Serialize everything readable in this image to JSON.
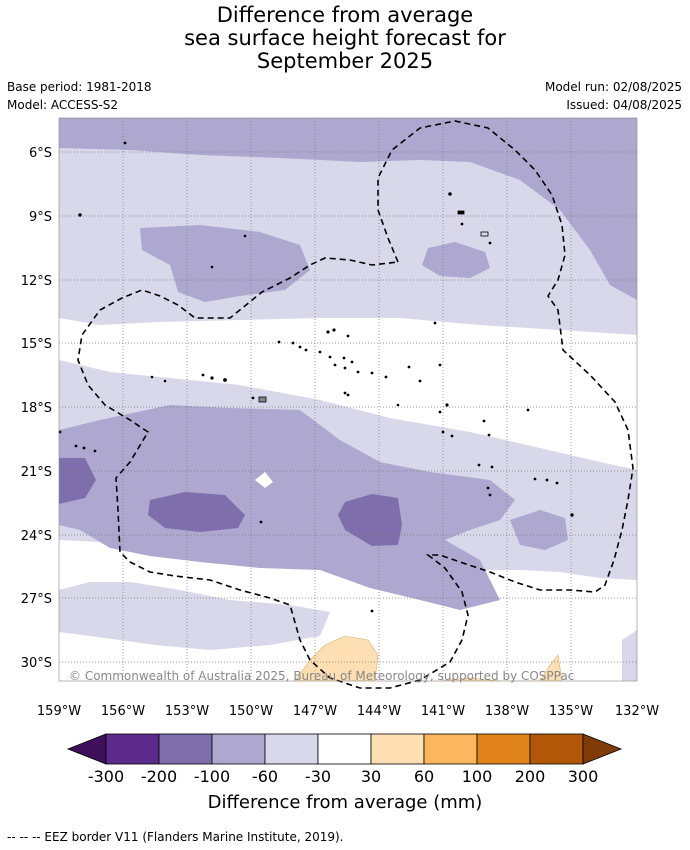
{
  "title": {
    "line1": "Difference from average",
    "line2": "sea surface height forecast for",
    "line3": "September 2025"
  },
  "meta": {
    "base_period": "Base period: 1981-2018",
    "model": "Model: ACCESS-S2",
    "model_run": "Model run: 02/08/2025",
    "issued": "Issued: 04/08/2025"
  },
  "map": {
    "lat_labels": [
      "6°S",
      "9°S",
      "12°S",
      "15°S",
      "18°S",
      "21°S",
      "24°S",
      "27°S",
      "30°S"
    ],
    "lon_labels": [
      "159°W",
      "156°W",
      "153°W",
      "150°W",
      "147°W",
      "144°W",
      "141°W",
      "138°W",
      "135°W",
      "132°W"
    ],
    "copyright": "© Commonwealth of Australia 2025, Bureau of Meteorology, supported by COSPPac"
  },
  "colorbar": {
    "ticks": [
      "-300",
      "-200",
      "-100",
      "-60",
      "-30",
      "30",
      "60",
      "100",
      "200",
      "300"
    ],
    "colors": [
      "#3f0f5c",
      "#5c2a8a",
      "#7e6fac",
      "#aea8d0",
      "#d8d8ea",
      "#ffffff",
      "#fddfb3",
      "#fbb65e",
      "#e0831a",
      "#b15707",
      "#7f3b08"
    ],
    "title": "Difference from average (mm)"
  },
  "footnote": "--  --  -- EEZ border V11 (Flanders Marine Institute, 2019)."
}
